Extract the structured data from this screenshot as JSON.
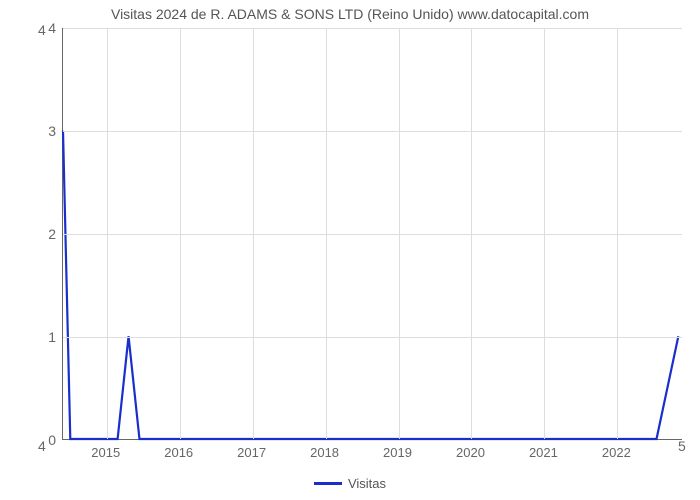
{
  "chart": {
    "type": "line",
    "title": "Visitas 2024 de R. ADAMS & SONS LTD (Reino Unido) www.datocapital.com",
    "title_fontsize": 14,
    "title_color": "#555555",
    "background_color": "#ffffff",
    "grid_color": "#dddddd",
    "axis_color": "#666666",
    "ytick_color": "#666666",
    "xtick_color": "#666666",
    "ylim": [
      0,
      4
    ],
    "yticks": [
      0,
      1,
      2,
      3,
      4
    ],
    "xlim_data": [
      2014.4,
      2022.9
    ],
    "xticks": [
      2015,
      2016,
      2017,
      2018,
      2019,
      2020,
      2021,
      2022
    ],
    "extra_left_top_label": "4",
    "extra_left_bottom_label": "4",
    "extra_right_bottom_label": "5",
    "series": {
      "color": "#1a2ecc",
      "line_width": 2.2,
      "data": [
        {
          "x": 2014.4,
          "y": 3.0
        },
        {
          "x": 2014.5,
          "y": 0.0
        },
        {
          "x": 2015.15,
          "y": 0.0
        },
        {
          "x": 2015.3,
          "y": 1.0
        },
        {
          "x": 2015.45,
          "y": 0.0
        },
        {
          "x": 2022.55,
          "y": 0.0
        },
        {
          "x": 2022.85,
          "y": 1.0
        }
      ]
    },
    "legend": {
      "label": "Visitas",
      "swatch_color": "#1a2ecc"
    },
    "label_fontsize": 14
  }
}
